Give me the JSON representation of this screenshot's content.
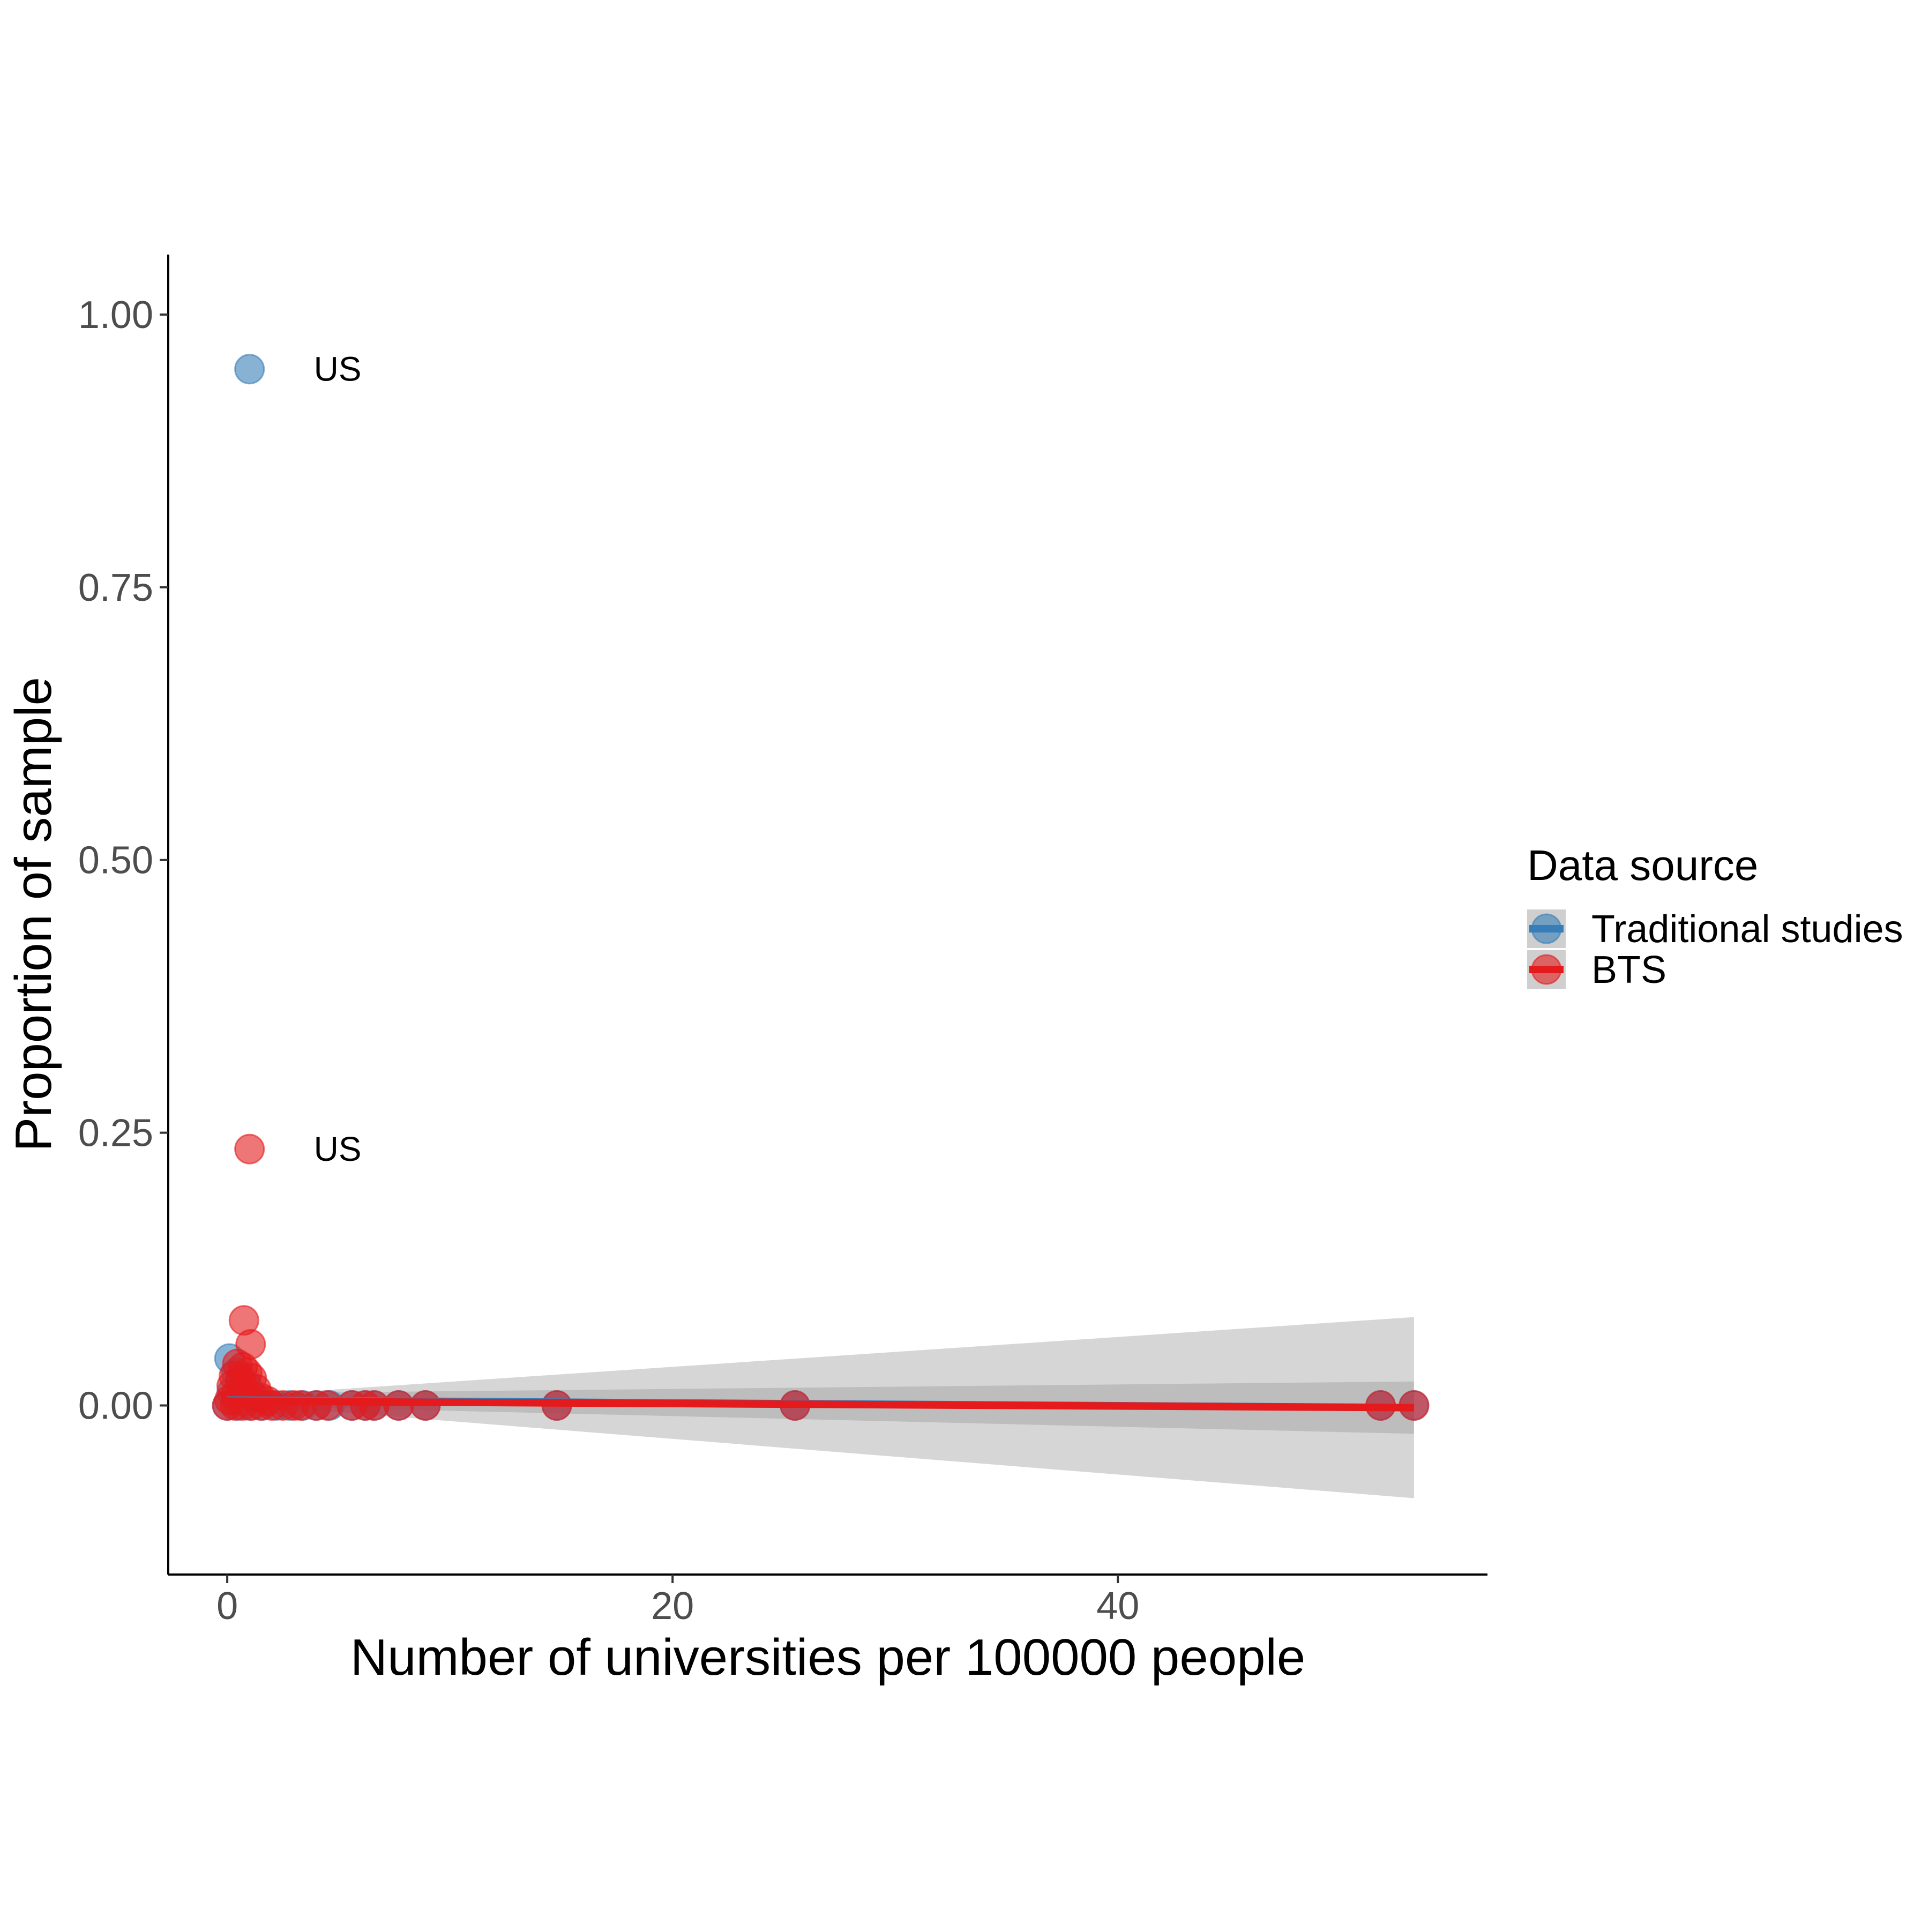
{
  "chart_data": {
    "type": "scatter",
    "title": "",
    "xlabel": "Number of universities per 100000 people",
    "ylabel": "Proportion of sample",
    "xlim": [
      -2.65,
      56.6
    ],
    "ylim": [
      -0.155,
      1.055
    ],
    "x_ticks": [
      0,
      20,
      40
    ],
    "x_tick_labels": [
      "0",
      "20",
      "40"
    ],
    "y_ticks": [
      0,
      0.25,
      0.5,
      0.75,
      1
    ],
    "y_tick_labels": [
      "0.00",
      "0.25",
      "0.50",
      "0.75",
      "1.00"
    ],
    "grid": false,
    "legend": {
      "title": "Data source",
      "position": "right",
      "entries": [
        "Traditional studies",
        "BTS"
      ]
    },
    "series": [
      {
        "name": "Traditional studies",
        "color": "#377EB8",
        "points": [
          {
            "x": 1.0,
            "y": 0.95,
            "label": "US"
          },
          {
            "x": 0.1,
            "y": 0.043
          },
          {
            "x": 0.4,
            "y": 0.03
          },
          {
            "x": 0.6,
            "y": 0.025
          },
          {
            "x": 0.9,
            "y": 0.018
          },
          {
            "x": 0.2,
            "y": 0.012
          },
          {
            "x": 1.2,
            "y": 0.008
          },
          {
            "x": 0.0,
            "y": 0.0
          },
          {
            "x": 0.5,
            "y": 0.0
          },
          {
            "x": 1.0,
            "y": 0.0
          },
          {
            "x": 1.6,
            "y": 0.0
          },
          {
            "x": 2.2,
            "y": 0.0
          },
          {
            "x": 2.8,
            "y": 0.0
          },
          {
            "x": 3.4,
            "y": 0.0
          },
          {
            "x": 4.0,
            "y": 0.0
          },
          {
            "x": 4.6,
            "y": 0.0
          },
          {
            "x": 5.6,
            "y": 0.0
          },
          {
            "x": 6.2,
            "y": 0.0
          },
          {
            "x": 6.6,
            "y": 0.0
          },
          {
            "x": 7.7,
            "y": 0.0
          },
          {
            "x": 8.9,
            "y": 0.0
          },
          {
            "x": 14.8,
            "y": 0.0
          },
          {
            "x": 25.5,
            "y": 0.0
          },
          {
            "x": 51.8,
            "y": 0.0
          },
          {
            "x": 53.3,
            "y": 0.0
          }
        ],
        "fit": {
          "x": [
            0,
            53.3
          ],
          "y": [
            0.005,
            -0.002
          ]
        },
        "ci": {
          "x": [
            0,
            53.3
          ],
          "lower": [
            0.0,
            -0.026
          ],
          "upper": [
            0.011,
            0.022
          ]
        }
      },
      {
        "name": "BTS",
        "color": "#E41A1C",
        "points": [
          {
            "x": 1.0,
            "y": 0.235,
            "label": "US"
          },
          {
            "x": 0.75,
            "y": 0.078
          },
          {
            "x": 1.05,
            "y": 0.056
          },
          {
            "x": 0.45,
            "y": 0.038
          },
          {
            "x": 0.7,
            "y": 0.035
          },
          {
            "x": 0.9,
            "y": 0.03
          },
          {
            "x": 0.3,
            "y": 0.027
          },
          {
            "x": 1.1,
            "y": 0.025
          },
          {
            "x": 0.6,
            "y": 0.022
          },
          {
            "x": 0.2,
            "y": 0.018
          },
          {
            "x": 1.3,
            "y": 0.015
          },
          {
            "x": 0.8,
            "y": 0.012
          },
          {
            "x": 0.4,
            "y": 0.01
          },
          {
            "x": 1.5,
            "y": 0.007
          },
          {
            "x": 0.1,
            "y": 0.005
          },
          {
            "x": 1.8,
            "y": 0.004
          },
          {
            "x": 0.0,
            "y": 0.0
          },
          {
            "x": 0.35,
            "y": 0.0
          },
          {
            "x": 0.7,
            "y": 0.0
          },
          {
            "x": 1.1,
            "y": 0.0
          },
          {
            "x": 1.5,
            "y": 0.0
          },
          {
            "x": 2.0,
            "y": 0.0
          },
          {
            "x": 2.5,
            "y": 0.0
          },
          {
            "x": 3.0,
            "y": 0.0
          },
          {
            "x": 3.3,
            "y": 0.0
          },
          {
            "x": 4.0,
            "y": 0.0
          },
          {
            "x": 4.5,
            "y": 0.0
          },
          {
            "x": 5.6,
            "y": 0.0
          },
          {
            "x": 6.2,
            "y": 0.0
          },
          {
            "x": 6.6,
            "y": 0.0
          },
          {
            "x": 7.7,
            "y": 0.0
          },
          {
            "x": 8.9,
            "y": 0.0
          },
          {
            "x": 14.8,
            "y": 0.0
          },
          {
            "x": 25.5,
            "y": 0.0
          },
          {
            "x": 51.8,
            "y": 0.0
          },
          {
            "x": 53.3,
            "y": 0.0
          }
        ],
        "fit": {
          "x": [
            0,
            53.3
          ],
          "y": [
            0.004,
            -0.002
          ]
        },
        "ci": {
          "x": [
            0,
            53.3
          ],
          "lower": [
            0.002,
            -0.085
          ],
          "upper": [
            0.008,
            0.081
          ]
        }
      }
    ]
  }
}
